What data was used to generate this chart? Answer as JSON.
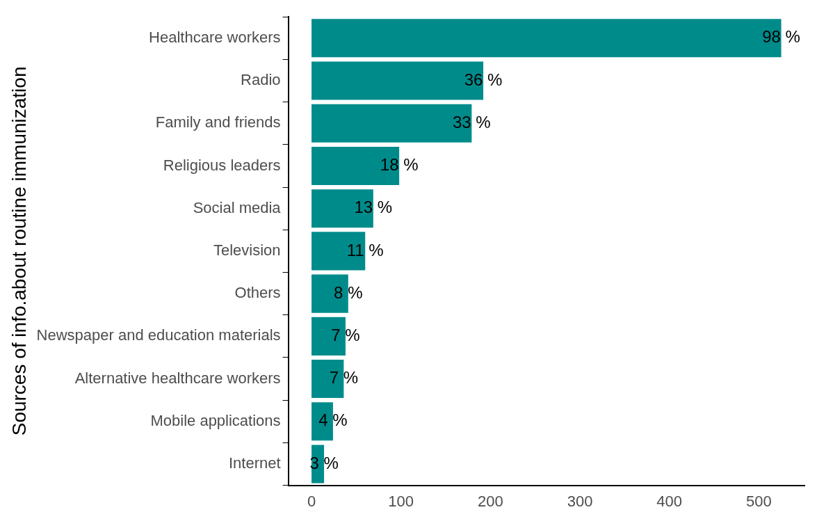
{
  "chart_data": {
    "type": "bar",
    "orientation": "horizontal",
    "ylabel": "Sources of info.about routine immunization",
    "categories": [
      "Healthcare workers",
      "Radio",
      "Family and friends",
      "Religious leaders",
      "Social media",
      "Television",
      "Others",
      "Newspaper and education materials",
      "Alternative healthcare workers",
      "Mobile applications",
      "Internet"
    ],
    "values": [
      525,
      192,
      179,
      98,
      69,
      60,
      41,
      38,
      36,
      24,
      14
    ],
    "annotations": [
      {
        "text": "98 %",
        "x": 525,
        "y": "Healthcare workers"
      },
      {
        "text": "36 %",
        "x": 192,
        "y": "Radio"
      },
      {
        "text": "33 %",
        "x": 179,
        "y": "Family and friends"
      },
      {
        "text": "18 %",
        "x": 98,
        "y": "Religious leaders"
      },
      {
        "text": "13 %",
        "x": 69,
        "y": "Social media"
      },
      {
        "text": "11 %",
        "x": 60,
        "y": "Television"
      },
      {
        "text": "8 %",
        "x": 41,
        "y": "Others"
      },
      {
        "text": "7 %",
        "x": 38,
        "y": "Newspaper and education materials"
      },
      {
        "text": "7 %",
        "x": 36,
        "y": "Alternative healthcare workers"
      },
      {
        "text": "4 %",
        "x": 24,
        "y": "Mobile applications"
      },
      {
        "text": "3 %",
        "x": 14,
        "y": "Internet"
      }
    ],
    "color": "#008b8b",
    "xlim": [
      -26,
      551
    ],
    "xticks": [
      0,
      100,
      200,
      300,
      400,
      500
    ],
    "grid": false,
    "legend": false
  }
}
